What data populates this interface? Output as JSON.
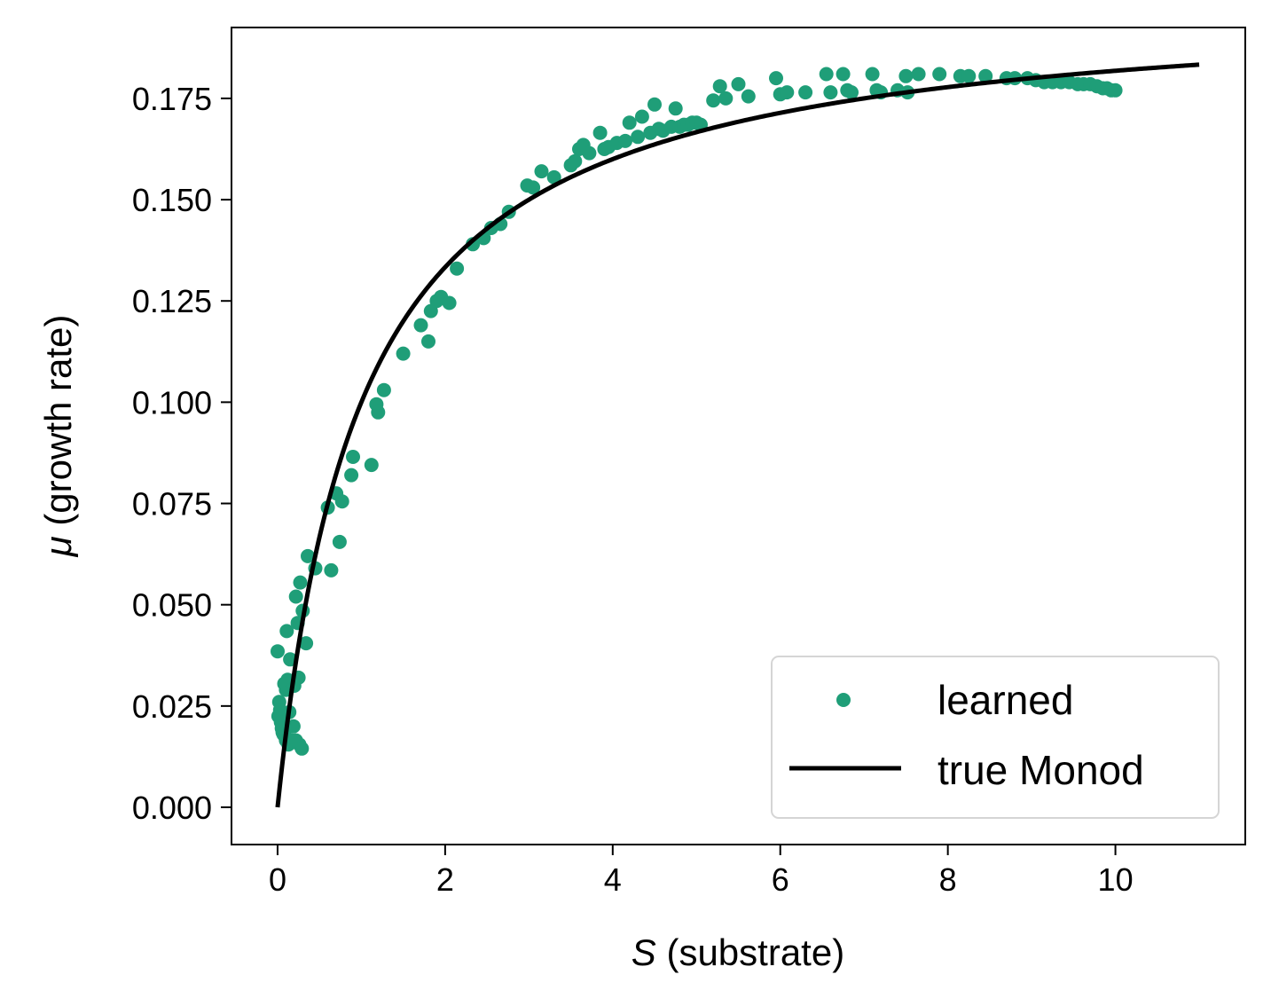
{
  "chart_data": {
    "type": "scatter",
    "xlabel": {
      "symbol": "S",
      "text": " (substrate)"
    },
    "ylabel": {
      "symbol": "μ",
      "text": " (growth rate)"
    },
    "xlim": [
      -0.55,
      11.55
    ],
    "ylim": [
      -0.0092,
      0.1925
    ],
    "xticks": [
      0,
      2,
      4,
      6,
      8,
      10
    ],
    "xtick_labels": [
      "0",
      "2",
      "4",
      "6",
      "8",
      "10"
    ],
    "yticks": [
      0.0,
      0.025,
      0.05,
      0.075,
      0.1,
      0.125,
      0.15,
      0.175
    ],
    "ytick_labels": [
      "0.000",
      "0.025",
      "0.050",
      "0.075",
      "0.100",
      "0.125",
      "0.150",
      "0.175"
    ],
    "grid": false,
    "legend": {
      "position": "lower-right",
      "entries": [
        {
          "label": "learned",
          "marker": "dot"
        },
        {
          "label": "true Monod",
          "marker": "line"
        }
      ]
    },
    "series": [
      {
        "name": "learned",
        "kind": "scatter",
        "color": "#1f9e78",
        "points": [
          [
            0.0,
            0.0385
          ],
          [
            0.01,
            0.0225
          ],
          [
            0.02,
            0.026
          ],
          [
            0.03,
            0.024
          ],
          [
            0.04,
            0.021
          ],
          [
            0.05,
            0.0195
          ],
          [
            0.06,
            0.0185
          ],
          [
            0.07,
            0.018
          ],
          [
            0.08,
            0.0305
          ],
          [
            0.09,
            0.0175
          ],
          [
            0.1,
            0.029
          ],
          [
            0.1,
            0.0165
          ],
          [
            0.11,
            0.0435
          ],
          [
            0.12,
            0.0315
          ],
          [
            0.13,
            0.0155
          ],
          [
            0.14,
            0.0235
          ],
          [
            0.15,
            0.0365
          ],
          [
            0.17,
            0.0165
          ],
          [
            0.19,
            0.02
          ],
          [
            0.2,
            0.03
          ],
          [
            0.22,
            0.0165
          ],
          [
            0.22,
            0.052
          ],
          [
            0.24,
            0.0455
          ],
          [
            0.25,
            0.032
          ],
          [
            0.26,
            0.0155
          ],
          [
            0.27,
            0.0555
          ],
          [
            0.29,
            0.0145
          ],
          [
            0.3,
            0.0485
          ],
          [
            0.34,
            0.0405
          ],
          [
            0.36,
            0.062
          ],
          [
            0.45,
            0.059
          ],
          [
            0.6,
            0.074
          ],
          [
            0.64,
            0.0585
          ],
          [
            0.7,
            0.0775
          ],
          [
            0.74,
            0.0655
          ],
          [
            0.77,
            0.0755
          ],
          [
            0.88,
            0.082
          ],
          [
            0.9,
            0.0865
          ],
          [
            1.12,
            0.0845
          ],
          [
            1.18,
            0.0995
          ],
          [
            1.2,
            0.0975
          ],
          [
            1.27,
            0.103
          ],
          [
            1.5,
            0.112
          ],
          [
            1.71,
            0.119
          ],
          [
            1.8,
            0.115
          ],
          [
            1.83,
            0.1225
          ],
          [
            1.9,
            0.125
          ],
          [
            1.95,
            0.126
          ],
          [
            2.05,
            0.1245
          ],
          [
            2.14,
            0.133
          ],
          [
            2.33,
            0.139
          ],
          [
            2.46,
            0.1405
          ],
          [
            2.55,
            0.143
          ],
          [
            2.66,
            0.144
          ],
          [
            2.76,
            0.147
          ],
          [
            2.98,
            0.1535
          ],
          [
            3.05,
            0.153
          ],
          [
            3.15,
            0.157
          ],
          [
            3.3,
            0.1555
          ],
          [
            3.5,
            0.1585
          ],
          [
            3.55,
            0.1595
          ],
          [
            3.6,
            0.1625
          ],
          [
            3.65,
            0.1635
          ],
          [
            3.72,
            0.1615
          ],
          [
            3.85,
            0.1665
          ],
          [
            3.9,
            0.1625
          ],
          [
            3.95,
            0.163
          ],
          [
            4.05,
            0.164
          ],
          [
            4.15,
            0.1645
          ],
          [
            4.2,
            0.169
          ],
          [
            4.3,
            0.1655
          ],
          [
            4.35,
            0.1705
          ],
          [
            4.45,
            0.1665
          ],
          [
            4.5,
            0.1735
          ],
          [
            4.55,
            0.1675
          ],
          [
            4.6,
            0.167
          ],
          [
            4.7,
            0.168
          ],
          [
            4.75,
            0.1725
          ],
          [
            4.8,
            0.168
          ],
          [
            4.85,
            0.1685
          ],
          [
            4.9,
            0.1685
          ],
          [
            4.95,
            0.169
          ],
          [
            5.0,
            0.169
          ],
          [
            5.05,
            0.1685
          ],
          [
            5.2,
            0.1745
          ],
          [
            5.28,
            0.178
          ],
          [
            5.35,
            0.175
          ],
          [
            5.5,
            0.1785
          ],
          [
            5.62,
            0.1755
          ],
          [
            5.95,
            0.18
          ],
          [
            6.0,
            0.176
          ],
          [
            6.08,
            0.1765
          ],
          [
            6.3,
            0.1765
          ],
          [
            6.55,
            0.181
          ],
          [
            6.6,
            0.1765
          ],
          [
            6.75,
            0.181
          ],
          [
            6.8,
            0.177
          ],
          [
            6.85,
            0.1765
          ],
          [
            7.1,
            0.181
          ],
          [
            7.15,
            0.177
          ],
          [
            7.2,
            0.1765
          ],
          [
            7.4,
            0.177
          ],
          [
            7.5,
            0.1805
          ],
          [
            7.52,
            0.1765
          ],
          [
            7.65,
            0.181
          ],
          [
            7.9,
            0.181
          ],
          [
            8.15,
            0.1805
          ],
          [
            8.25,
            0.1805
          ],
          [
            8.45,
            0.1805
          ],
          [
            8.7,
            0.18
          ],
          [
            8.8,
            0.18
          ],
          [
            8.95,
            0.18
          ],
          [
            9.05,
            0.1795
          ],
          [
            9.15,
            0.179
          ],
          [
            9.25,
            0.179
          ],
          [
            9.35,
            0.179
          ],
          [
            9.45,
            0.179
          ],
          [
            9.55,
            0.1785
          ],
          [
            9.62,
            0.1785
          ],
          [
            9.7,
            0.1785
          ],
          [
            9.78,
            0.178
          ],
          [
            9.85,
            0.1775
          ],
          [
            9.9,
            0.1775
          ],
          [
            9.95,
            0.177
          ],
          [
            10.0,
            0.177
          ]
        ]
      },
      {
        "name": "true Monod",
        "kind": "line",
        "color": "#000000",
        "mu_max": 0.2,
        "Ks": 1.0,
        "x_range": [
          0,
          11
        ]
      }
    ]
  }
}
